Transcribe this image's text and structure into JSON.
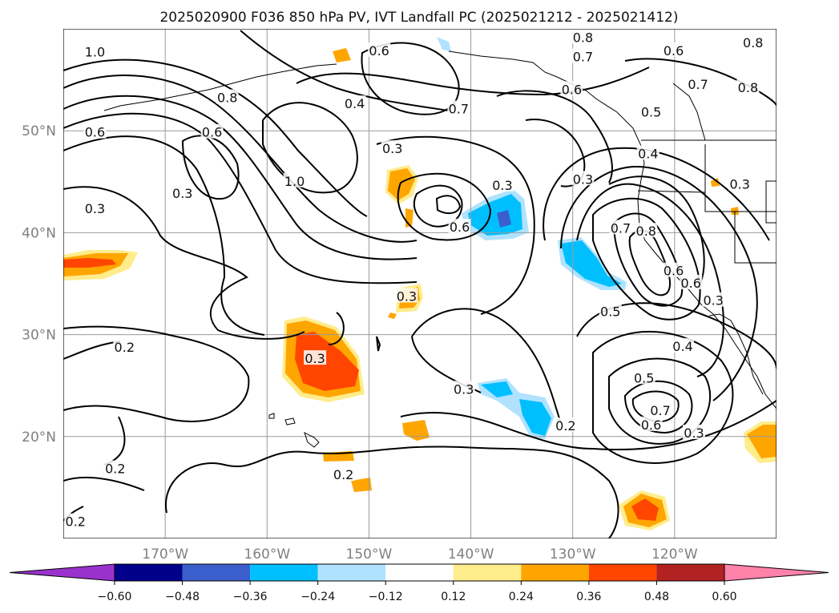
{
  "title": "2025020900 F036 850 hPa PV, IVT Landfall PC (2025021212 - 2025021412)",
  "lat_labels": [
    {
      "text": "50°N",
      "lat": 50
    },
    {
      "text": "40°N",
      "lat": 40
    },
    {
      "text": "30°N",
      "lat": 30
    },
    {
      "text": "20°N",
      "lat": 20
    }
  ],
  "lon_labels": [
    {
      "text": "170°W",
      "lon": -170
    },
    {
      "text": "160°W",
      "lon": -160
    },
    {
      "text": "150°W",
      "lon": -150
    },
    {
      "text": "140°W",
      "lon": -140
    },
    {
      "text": "130°W",
      "lon": -130
    },
    {
      "text": "120°W",
      "lon": -120
    }
  ],
  "map_extent": {
    "lon": [
      -180,
      -110
    ],
    "lat": [
      10,
      60
    ]
  },
  "colorbar": {
    "under_color": "#9932cc",
    "over_color": "#ff82ab",
    "bins": [
      {
        "color": "#00008b"
      },
      {
        "color": "#3a5fcd"
      },
      {
        "color": "#00bfff"
      },
      {
        "color": "#b0e2ff"
      },
      {
        "color": "#ffffff"
      },
      {
        "color": "#ffec8b"
      },
      {
        "color": "#ffa500"
      },
      {
        "color": "#ff4500"
      },
      {
        "color": "#b22222"
      }
    ],
    "tick_labels": [
      "−0.60",
      "−0.48",
      "−0.36",
      "−0.24",
      "−0.12",
      "0.12",
      "0.24",
      "0.36",
      "0.48",
      "0.60"
    ]
  },
  "contour_labels": [
    {
      "text": "1.0",
      "lon": -176.9,
      "lat": 57.7
    },
    {
      "text": "0.6",
      "lon": -149.0,
      "lat": 57.8
    },
    {
      "text": "0.8",
      "lon": -129.0,
      "lat": 59.1
    },
    {
      "text": "0.7",
      "lon": -129.0,
      "lat": 57.2
    },
    {
      "text": "0.6",
      "lon": -120.1,
      "lat": 57.8
    },
    {
      "text": "0.8",
      "lon": -112.3,
      "lat": 58.6
    },
    {
      "text": "0.7",
      "lon": -117.7,
      "lat": 54.5
    },
    {
      "text": "0.8",
      "lon": -112.8,
      "lat": 54.2
    },
    {
      "text": "0.6",
      "lon": -130.1,
      "lat": 54.0
    },
    {
      "text": "0.8",
      "lon": -163.9,
      "lat": 53.2
    },
    {
      "text": "0.4",
      "lon": -151.4,
      "lat": 52.6
    },
    {
      "text": "0.7",
      "lon": -141.2,
      "lat": 52.1
    },
    {
      "text": "0.5",
      "lon": -122.3,
      "lat": 51.8
    },
    {
      "text": "0.6",
      "lon": -176.9,
      "lat": 49.8
    },
    {
      "text": "0.6",
      "lon": -165.4,
      "lat": 49.8
    },
    {
      "text": "0.3",
      "lon": -147.7,
      "lat": 48.2
    },
    {
      "text": "0.4",
      "lon": -122.6,
      "lat": 47.7
    },
    {
      "text": "0.3",
      "lon": -129.0,
      "lat": 45.2
    },
    {
      "text": "1.0",
      "lon": -157.3,
      "lat": 45.0
    },
    {
      "text": "0.3",
      "lon": -136.9,
      "lat": 44.6
    },
    {
      "text": "0.3",
      "lon": -113.6,
      "lat": 44.7
    },
    {
      "text": "0.3",
      "lon": -168.3,
      "lat": 43.8
    },
    {
      "text": "0.3",
      "lon": -176.9,
      "lat": 42.3
    },
    {
      "text": "0.7",
      "lon": -125.3,
      "lat": 40.4
    },
    {
      "text": "0.8",
      "lon": -122.8,
      "lat": 40.1
    },
    {
      "text": "0.6",
      "lon": -141.1,
      "lat": 40.5
    },
    {
      "text": "0.6",
      "lon": -120.1,
      "lat": 36.2
    },
    {
      "text": "0.6",
      "lon": -118.4,
      "lat": 35.0
    },
    {
      "text": "0.3",
      "lon": -116.2,
      "lat": 33.3
    },
    {
      "text": "0.5",
      "lon": -126.3,
      "lat": 32.2
    },
    {
      "text": "0.3",
      "lon": -146.3,
      "lat": 33.7
    },
    {
      "text": "0.4",
      "lon": -119.2,
      "lat": 28.8
    },
    {
      "text": "0.2",
      "lon": -174.0,
      "lat": 28.7
    },
    {
      "text": "0.3",
      "lon": -155.3,
      "lat": 27.6
    },
    {
      "text": "0.5",
      "lon": -123.0,
      "lat": 25.7
    },
    {
      "text": "0.3",
      "lon": -140.7,
      "lat": 24.6
    },
    {
      "text": "0.7",
      "lon": -121.4,
      "lat": 22.5
    },
    {
      "text": "0.6",
      "lon": -122.3,
      "lat": 21.1
    },
    {
      "text": "0.2",
      "lon": -130.7,
      "lat": 21.0
    },
    {
      "text": "0.3",
      "lon": -118.1,
      "lat": 20.3
    },
    {
      "text": "0.2",
      "lon": -174.9,
      "lat": 16.8
    },
    {
      "text": "0.2",
      "lon": -152.5,
      "lat": 16.2
    },
    {
      "text": "0.2",
      "lon": -178.8,
      "lat": 11.6
    }
  ]
}
